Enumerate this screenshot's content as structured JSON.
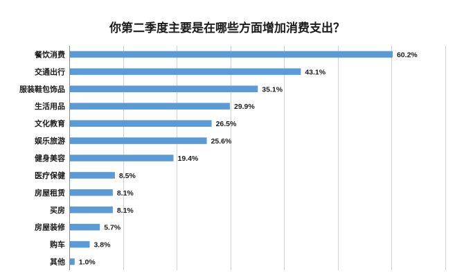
{
  "chart_data": {
    "type": "bar",
    "orientation": "horizontal",
    "title": "你第二季度主要是在哪些方面增加消费支出？",
    "xlabel": "",
    "ylabel": "",
    "categories": [
      "餐饮消费",
      "交通出行",
      "服装鞋包饰品",
      "生活用品",
      "文化教育",
      "娱乐旅游",
      "健身美容",
      "医疗保健",
      "房屋租赁",
      "买房",
      "房屋装修",
      "购车",
      "其他"
    ],
    "values": [
      60.2,
      43.1,
      35.1,
      29.9,
      26.5,
      25.6,
      19.4,
      8.5,
      8.1,
      8.1,
      5.7,
      3.8,
      1.0
    ],
    "value_labels": [
      "60.2%",
      "43.1%",
      "35.1%",
      "29.9%",
      "26.5%",
      "25.6%",
      "19.4%",
      "8.5%",
      "8.1%",
      "8.1%",
      "5.7%",
      "3.8%",
      "1.0%"
    ],
    "xlim": [
      0,
      70
    ],
    "x_tick_step": 10,
    "grid": "vertical",
    "legend": "none",
    "bar_color": "#5b9bd5"
  }
}
